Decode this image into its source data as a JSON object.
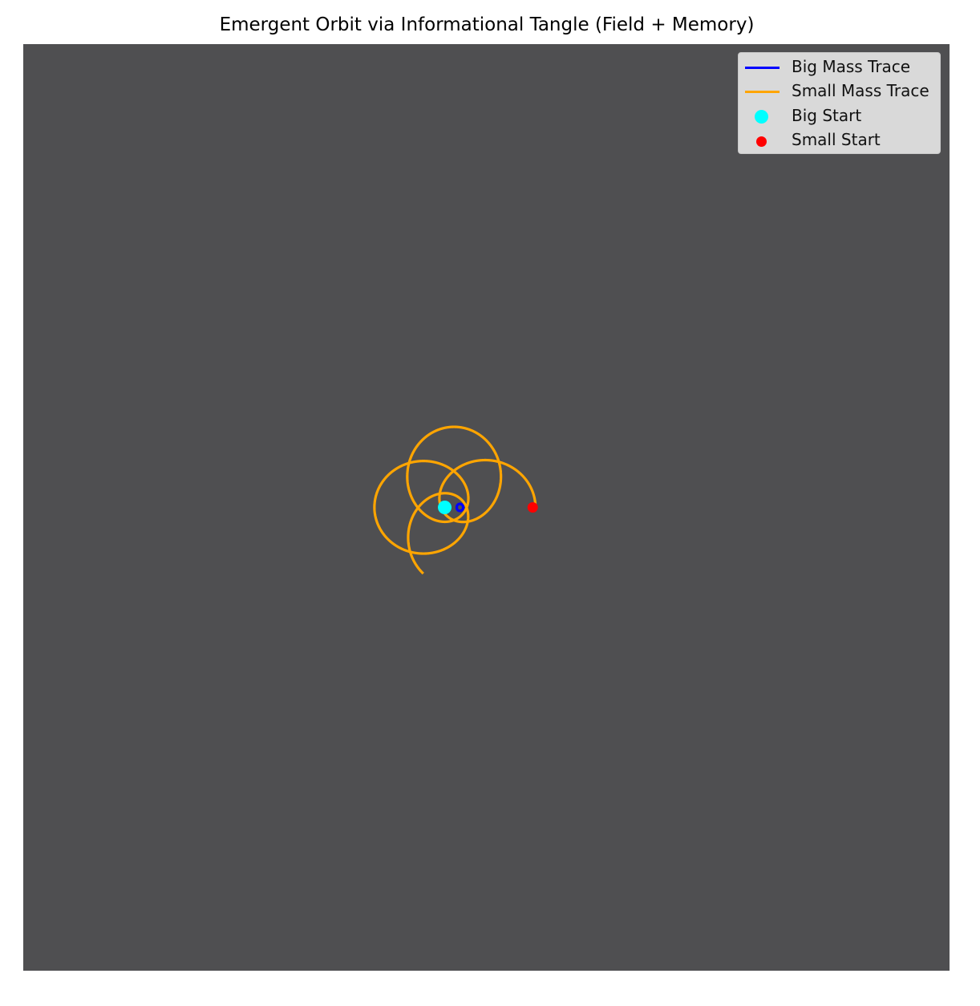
{
  "chart_data": {
    "type": "line",
    "title": "Emergent Orbit via Informational Tangle (Field + Memory)",
    "xlabel": "",
    "ylabel": "",
    "axes_visible": false,
    "grid": false,
    "legend_position": "top-right",
    "xlim": [
      -5,
      5
    ],
    "ylim": [
      -5,
      5
    ],
    "colors": {
      "background": "#4f4f51",
      "big_trace": "#0000ff",
      "small_trace": "#ffa500",
      "big_start": "#00ffff",
      "small_start": "#ff0000"
    },
    "series": [
      {
        "name": "Big Mass Trace",
        "kind": "line",
        "color": "#0000ff",
        "model": {
          "center": [
            -0.35,
            0.0
          ],
          "outer_radius": 0.05,
          "inner_radius": 0.05,
          "lobes": 4,
          "turns": 2.7,
          "phase_deg": 0
        }
      },
      {
        "name": "Small Mass Trace",
        "kind": "line",
        "color": "#ffa500",
        "model": {
          "center": [
            -0.35,
            0.0
          ],
          "semi_major": 0.5,
          "semi_minor": 0.38,
          "offset": 0.38,
          "lobes": 4,
          "turns": 2.9,
          "start_angle_deg": 0
        }
      },
      {
        "name": "Big Start",
        "kind": "point",
        "color": "#00ffff",
        "x": -0.45,
        "y": 0.0
      },
      {
        "name": "Small Start",
        "kind": "point",
        "color": "#ff0000",
        "x": 0.5,
        "y": 0.0
      }
    ]
  }
}
